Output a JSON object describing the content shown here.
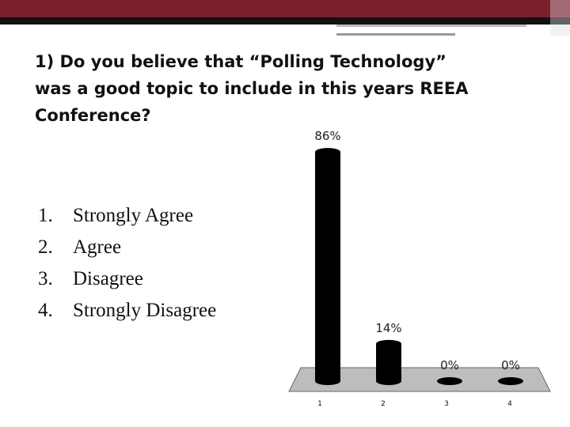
{
  "slide": {
    "title_lines": [
      "1) Do you believe that “Polling Technology”",
      "was a good topic to include in this years REEA",
      "Conference?"
    ],
    "options": [
      {
        "number": "1.",
        "text": "Strongly Agree"
      },
      {
        "number": "2.",
        "text": "Agree"
      },
      {
        "number": "3.",
        "text": "Disagree"
      },
      {
        "number": "4.",
        "text": "Strongly Disagree"
      }
    ]
  },
  "chart_data": {
    "type": "bar",
    "categories": [
      "1",
      "2",
      "3",
      "4"
    ],
    "values": [
      86,
      14,
      0,
      0
    ],
    "value_labels": [
      "86%",
      "14%",
      "0%",
      "0%"
    ],
    "color": "#000000"
  }
}
